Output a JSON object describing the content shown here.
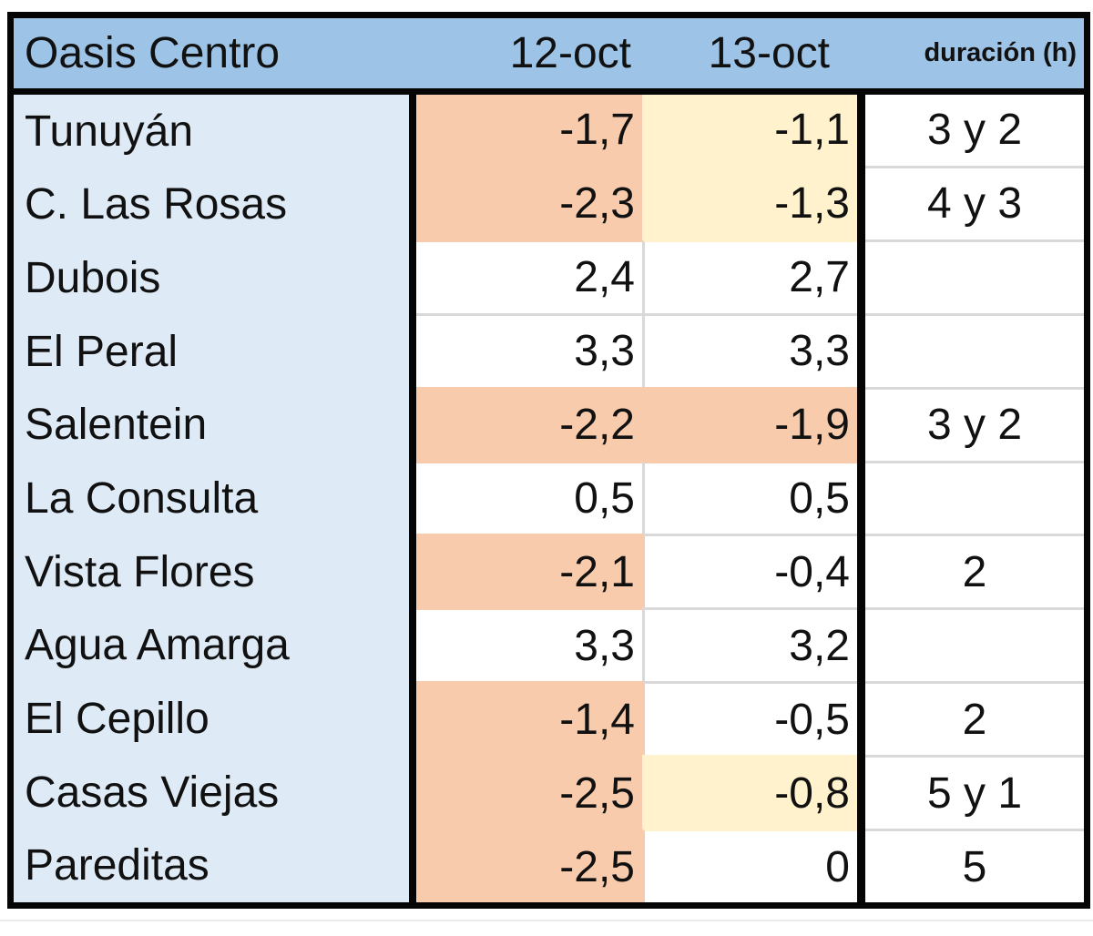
{
  "header": {
    "title": "Oasis Centro",
    "col_12oct": "12-oct",
    "col_13oct": "13-oct",
    "col_duracion": "duración (h)"
  },
  "rows": [
    {
      "name": "Tunuyán",
      "v12": "-1,7",
      "f12": "orange",
      "v13": "-1,1",
      "f13": "yellow",
      "dur": "3 y 2"
    },
    {
      "name": "C. Las Rosas",
      "v12": "-2,3",
      "f12": "orange",
      "v13": "-1,3",
      "f13": "yellow",
      "dur": "4 y 3"
    },
    {
      "name": "Dubois",
      "v12": "2,4",
      "f12": null,
      "v13": "2,7",
      "f13": null,
      "dur": ""
    },
    {
      "name": "El Peral",
      "v12": "3,3",
      "f12": null,
      "v13": "3,3",
      "f13": null,
      "dur": ""
    },
    {
      "name": "Salentein",
      "v12": "-2,2",
      "f12": "orange",
      "v13": "-1,9",
      "f13": "orange",
      "dur": "3 y 2"
    },
    {
      "name": "La Consulta",
      "v12": "0,5",
      "f12": null,
      "v13": "0,5",
      "f13": null,
      "dur": ""
    },
    {
      "name": "Vista Flores",
      "v12": "-2,1",
      "f12": "orange",
      "v13": "-0,4",
      "f13": null,
      "dur": "2"
    },
    {
      "name": "Agua Amarga",
      "v12": "3,3",
      "f12": null,
      "v13": "3,2",
      "f13": null,
      "dur": ""
    },
    {
      "name": "El Cepillo",
      "v12": "-1,4",
      "f12": "orange",
      "v13": "-0,5",
      "f13": null,
      "dur": "2"
    },
    {
      "name": "Casas Viejas",
      "v12": "-2,5",
      "f12": "orange",
      "v13": "-0,8",
      "f13": "yellow",
      "dur": "5 y 1"
    },
    {
      "name": "Pareditas",
      "v12": "-2,5",
      "f12": "orange",
      "v13": "0",
      "f13": null,
      "dur": "5"
    }
  ],
  "colors": {
    "header_bg": "#9DC3E6",
    "name_col_bg": "#DEEBF7",
    "orange": "#F8CBAD",
    "yellow": "#FFF2CC",
    "gridline": "#D9D9D9",
    "border": "#050505",
    "text": "#111111"
  },
  "chart_data": {
    "type": "table",
    "title": "Oasis Centro",
    "columns": [
      "Oasis Centro",
      "12-oct",
      "13-oct",
      "duración (h)"
    ],
    "rows": [
      [
        "Tunuyán",
        "-1,7",
        "-1,1",
        "3 y 2"
      ],
      [
        "C. Las Rosas",
        "-2,3",
        "-1,3",
        "4 y 3"
      ],
      [
        "Dubois",
        "2,4",
        "2,7",
        ""
      ],
      [
        "El Peral",
        "3,3",
        "3,3",
        ""
      ],
      [
        "Salentein",
        "-2,2",
        "-1,9",
        "3 y 2"
      ],
      [
        "La Consulta",
        "0,5",
        "0,5",
        ""
      ],
      [
        "Vista Flores",
        "-2,1",
        "-0,4",
        "2"
      ],
      [
        "Agua Amarga",
        "3,3",
        "3,2",
        ""
      ],
      [
        "El Cepillo",
        "-1,4",
        "-0,5",
        "2"
      ],
      [
        "Casas Viejas",
        "-2,5",
        "-0,8",
        "5 y 1"
      ],
      [
        "Pareditas",
        "-2,5",
        "0",
        "5"
      ]
    ],
    "numeric_values": {
      "12-oct": [
        -1.7,
        -2.3,
        2.4,
        3.3,
        -2.2,
        0.5,
        -2.1,
        3.3,
        -1.4,
        -2.5,
        -2.5
      ],
      "13-oct": [
        -1.1,
        -1.3,
        2.7,
        3.3,
        -1.9,
        0.5,
        -0.4,
        3.2,
        -0.5,
        -0.8,
        0.0
      ]
    },
    "cell_highlights": {
      "orange_#F8CBAD_12oct_rows": [
        "Tunuyán",
        "C. Las Rosas",
        "Salentein",
        "Vista Flores",
        "El Cepillo",
        "Casas Viejas",
        "Pareditas"
      ],
      "orange_#F8CBAD_13oct_rows": [
        "Salentein"
      ],
      "yellow_#FFF2CC_13oct_rows": [
        "Tunuyán",
        "C. Las Rosas",
        "Casas Viejas"
      ]
    },
    "layout_hints": {
      "header_fill": "#9DC3E6",
      "first_column_fill": "#DEEBF7",
      "negative_values_highlighted": true,
      "decimal_separator": "comma"
    }
  }
}
